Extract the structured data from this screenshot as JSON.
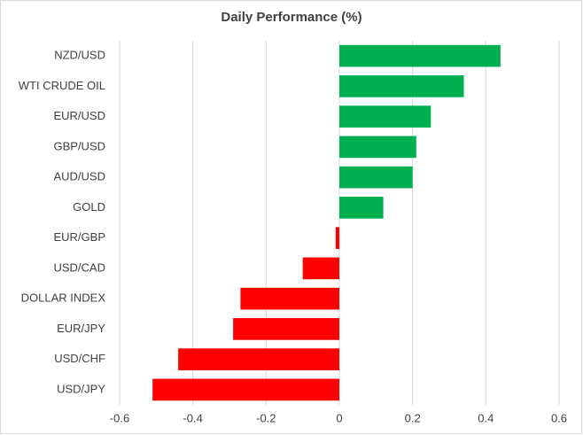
{
  "chart_data": {
    "type": "bar",
    "orientation": "horizontal",
    "title": "Daily Performance (%)",
    "categories": [
      "NZD/USD",
      "WTI CRUDE OIL",
      "EUR/USD",
      "GBP/USD",
      "AUD/USD",
      "GOLD",
      "EUR/GBP",
      "USD/CAD",
      "DOLLAR INDEX",
      "EUR/JPY",
      "USD/CHF",
      "USD/JPY"
    ],
    "values": [
      0.44,
      0.34,
      0.25,
      0.21,
      0.2,
      0.12,
      -0.01,
      -0.1,
      -0.27,
      -0.29,
      -0.44,
      -0.51
    ],
    "positive_color": "#00b050",
    "negative_color": "#ff0000",
    "xlim": [
      -0.6,
      0.6
    ],
    "xticks": [
      -0.6,
      -0.4,
      -0.2,
      0,
      0.2,
      0.4,
      0.6
    ],
    "grid": true
  }
}
